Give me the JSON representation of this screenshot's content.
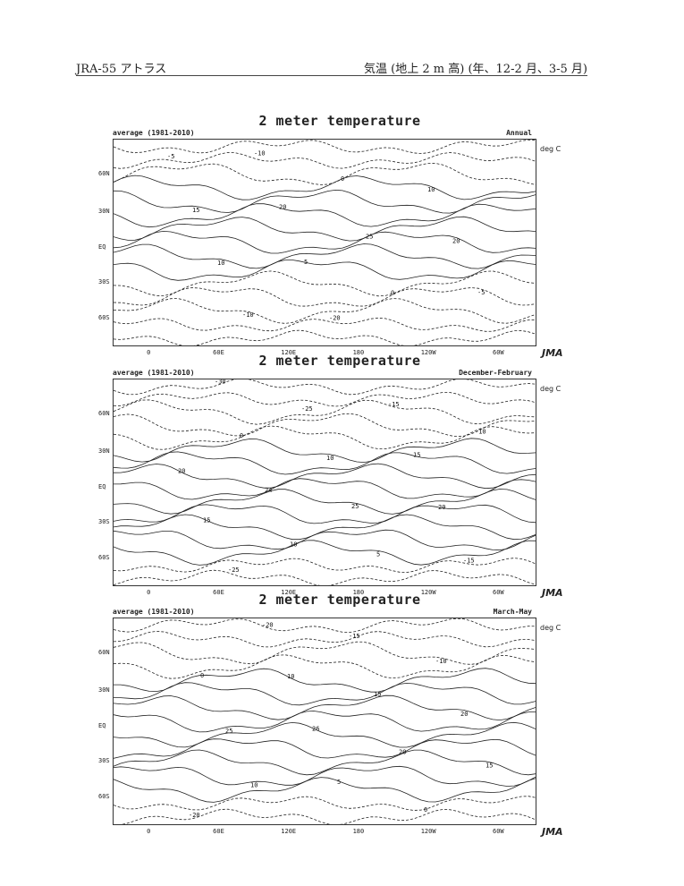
{
  "header": {
    "left": "JRA-55 アトラス",
    "right": "気温 (地上 2 m 高) (年、12-2 月、3-5 月)"
  },
  "panels": [
    {
      "title": "2 meter temperature",
      "subtitle": "average (1981-2010)",
      "season": "Annual",
      "unit": "deg C",
      "logo": "JMA",
      "contour_labels": [
        "-5",
        "-10",
        "0",
        "10",
        "15",
        "20",
        "25",
        "20",
        "10",
        "5",
        "0",
        "-5",
        "-10",
        "-20",
        "-40"
      ]
    },
    {
      "title": "2 meter temperature",
      "subtitle": "average (1981-2010)",
      "season": "December-February",
      "unit": "deg C",
      "logo": "JMA",
      "contour_labels": [
        "-30",
        "-25",
        "-15",
        "-10",
        "0",
        "10",
        "15",
        "20",
        "24",
        "25",
        "20",
        "15",
        "10",
        "5",
        "-15",
        "-25"
      ]
    },
    {
      "title": "2 meter temperature",
      "subtitle": "average (1981-2010)",
      "season": "March-May",
      "unit": "deg C",
      "logo": "JMA",
      "contour_labels": [
        "-20",
        "-15",
        "-10",
        "0",
        "10",
        "15",
        "20",
        "25",
        "26",
        "20",
        "15",
        "10",
        "5",
        "0",
        "-20"
      ]
    }
  ],
  "lat_ticks": [
    "60N",
    "30N",
    "EQ",
    "30S",
    "60S"
  ],
  "lon_ticks": [
    "0",
    "60E",
    "120E",
    "180",
    "120W",
    "60W"
  ]
}
